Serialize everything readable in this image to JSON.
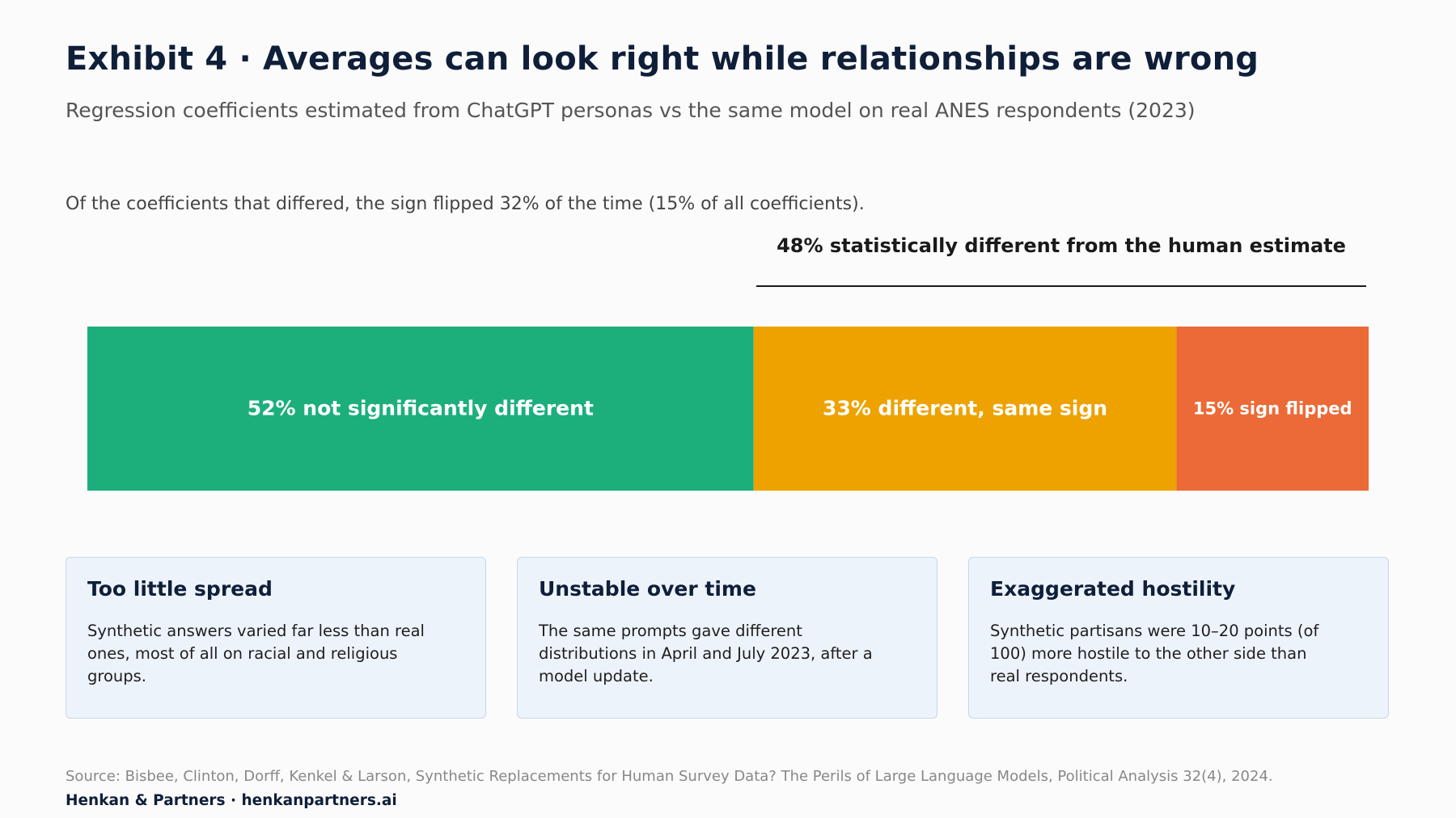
{
  "header": {
    "title": "Exhibit 4 · Averages can look right while relationships are wrong",
    "subtitle": "Regression coefficients estimated from ChatGPT personas vs the same model on real ANES respondents (2023)"
  },
  "note": "Of the coefficients that differed, the sign flipped 32% of the time (15% of all coefficients).",
  "bracket": {
    "label": "48% statistically different from the human estimate"
  },
  "chart_data": {
    "type": "bar",
    "orientation": "horizontal-stacked",
    "total": 100,
    "categories": [
      "not significantly different",
      "different, same sign",
      "sign flipped"
    ],
    "values": [
      52,
      33,
      15
    ],
    "labels": [
      "52%  not significantly different",
      "33%  different, same sign",
      "15%  sign flipped"
    ],
    "colors": [
      "#1caf7c",
      "#eda200",
      "#eb6a37"
    ]
  },
  "cards": [
    {
      "title": "Too little spread",
      "body": "Synthetic answers varied far less than real ones, most of all on racial and religious groups."
    },
    {
      "title": "Unstable over time",
      "body": "The same prompts gave different distributions in April and July 2023, after a model update."
    },
    {
      "title": "Exaggerated hostility",
      "body": "Synthetic partisans were 10–20 points (of 100) more hostile to the other side than real respondents."
    }
  ],
  "footer": {
    "source": "Source: Bisbee, Clinton, Dorff, Kenkel & Larson, Synthetic Replacements for Human Survey Data? The Perils of Large Language Models, Political Analysis 32(4), 2024.",
    "brand": "Henkan & Partners · henkanpartners.ai"
  }
}
